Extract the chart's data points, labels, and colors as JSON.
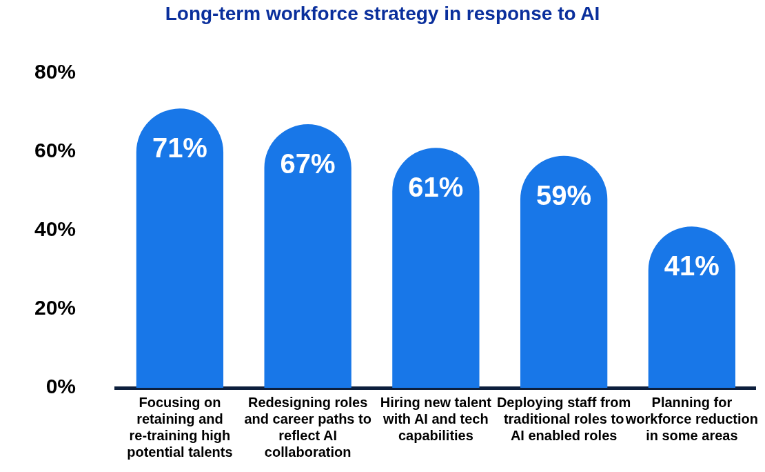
{
  "chart_data": {
    "type": "bar",
    "title": "Long-term workforce strategy in response to AI",
    "categories": [
      "Focusing on retaining and re-training high potential talents",
      "Redesigning roles and career paths to reflect AI collaboration",
      "Hiring new talent with AI and tech capabilities",
      "Deploying staff from traditional roles to AI enabled roles",
      "Planning for workforce reduction in some areas"
    ],
    "values": [
      71,
      67,
      61,
      59,
      41
    ],
    "value_labels": [
      "71%",
      "67%",
      "61%",
      "59%",
      "41%"
    ],
    "color": "#1877e8",
    "ylim": [
      0,
      80
    ],
    "yticks": [
      {
        "value": 0,
        "label": "0%"
      },
      {
        "value": 20,
        "label": "20%"
      },
      {
        "value": 40,
        "label": "40%"
      },
      {
        "value": 60,
        "label": "60%"
      },
      {
        "value": 80,
        "label": "80%"
      }
    ],
    "grid": false,
    "legend": false
  }
}
